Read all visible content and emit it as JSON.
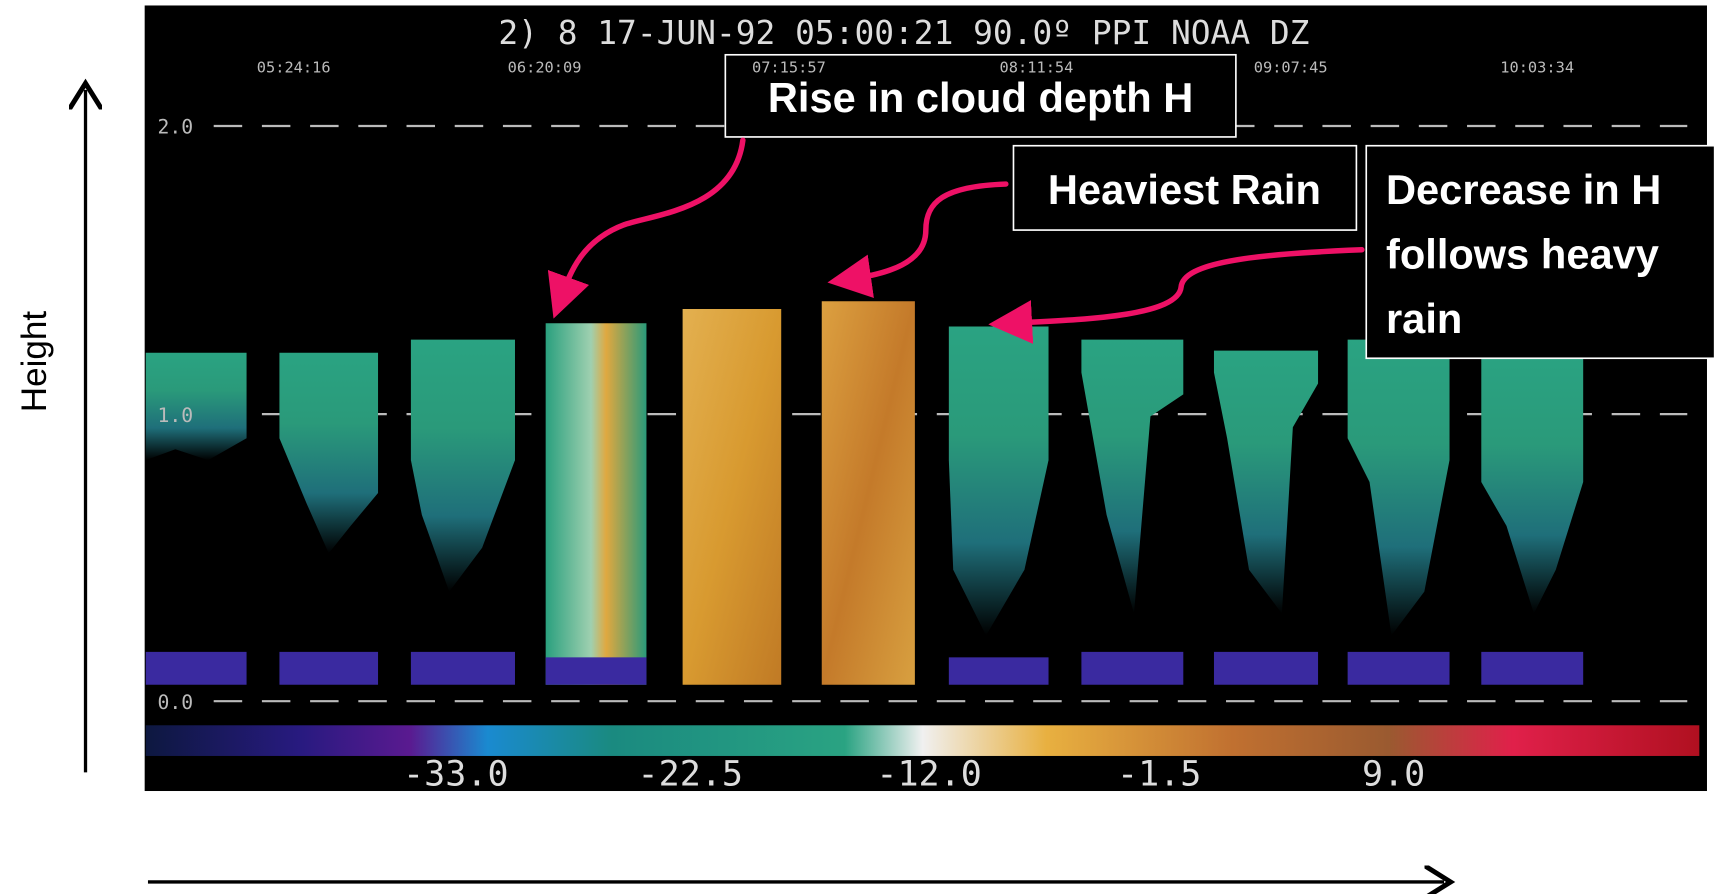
{
  "header": "2) 8 17-JUN-92 05:00:21 90.0º PPI NOAA DZ",
  "times": [
    "05:24:16",
    "06:20:09",
    "07:15:57",
    "08:11:54",
    "09:07:45",
    "10:03:34"
  ],
  "height_labels": [
    "2.0",
    "1.0",
    "0.0"
  ],
  "colorbar_labels": [
    "-33.0",
    "-22.5",
    "-12.0",
    "-1.5",
    "9.0"
  ],
  "annotations": {
    "rise": "Rise in cloud depth H",
    "heaviest": "Heaviest Rain",
    "decrease": [
      "Decrease in H",
      "follows heavy",
      "rain"
    ]
  },
  "axis_label": "Height"
}
